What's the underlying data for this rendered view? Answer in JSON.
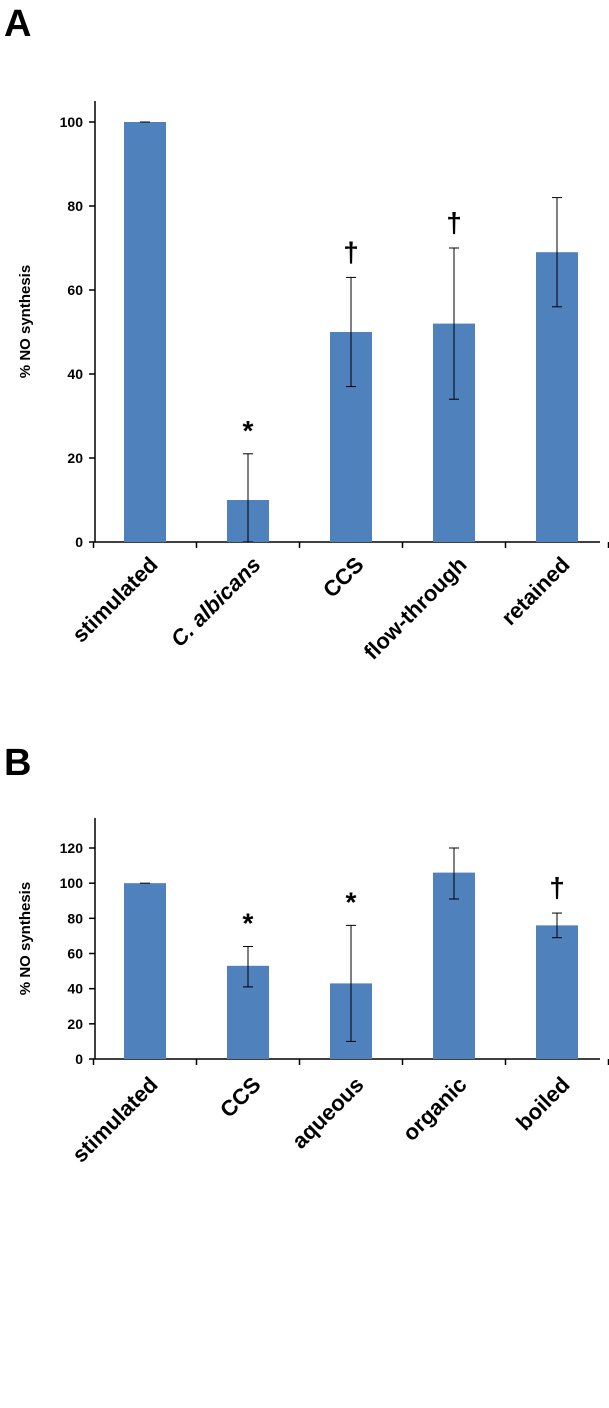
{
  "chart_data": [
    {
      "panel": "A",
      "type": "bar",
      "ylabel": "% NO synthesis",
      "ylim": [
        0,
        100
      ],
      "yticks": [
        0,
        20,
        40,
        60,
        80,
        100
      ],
      "categories": [
        "stimulated",
        "C. albicans",
        "CCS",
        "flow-through",
        "retained"
      ],
      "category_italic": [
        false,
        true,
        false,
        false,
        false
      ],
      "values": [
        100,
        10,
        50,
        52,
        69
      ],
      "error_low": [
        100,
        0,
        37,
        34,
        56
      ],
      "error_high": [
        100,
        21,
        63,
        70,
        82
      ],
      "annotations": [
        "",
        "*",
        "†",
        "†",
        ""
      ],
      "bar_color": "#4f81bd"
    },
    {
      "panel": "B",
      "type": "bar",
      "ylabel": "% NO synthesis",
      "ylim": [
        0,
        120
      ],
      "yticks": [
        0,
        20,
        40,
        60,
        80,
        100,
        120
      ],
      "categories": [
        "stimulated",
        "CCS",
        "aqueous",
        "organic",
        "boiled"
      ],
      "category_italic": [
        false,
        false,
        false,
        false,
        false
      ],
      "values": [
        100,
        53,
        43,
        106,
        76
      ],
      "error_low": [
        100,
        41,
        10,
        91,
        69
      ],
      "error_high": [
        100,
        64,
        76,
        120,
        83
      ],
      "annotations": [
        "",
        "*",
        "*",
        "",
        "†"
      ],
      "bar_color": "#4f81bd"
    }
  ]
}
